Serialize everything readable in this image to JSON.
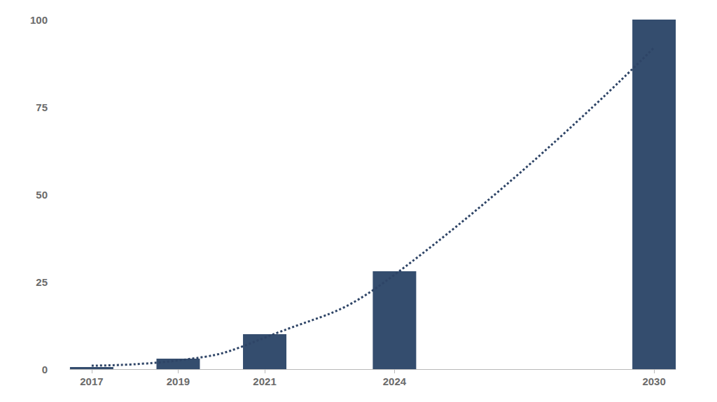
{
  "chart_data": {
    "type": "bar",
    "x": [
      2017,
      2019,
      2021,
      2024,
      2030
    ],
    "series": [
      {
        "type": "bar",
        "color": "#344d6e",
        "values": [
          0.6,
          3,
          10,
          28,
          100
        ]
      },
      {
        "type": "line",
        "color": "#2e4466",
        "line_style": "dotted",
        "values": [
          1,
          2.5,
          9,
          27,
          92
        ]
      }
    ],
    "xlim": [
      2016.5,
      2030.5
    ],
    "xticks": [
      2017,
      2019,
      2021,
      2024,
      2030
    ],
    "ylim": [
      0,
      100
    ],
    "yticks": [
      0,
      25,
      50,
      75,
      100
    ],
    "grid": false
  }
}
